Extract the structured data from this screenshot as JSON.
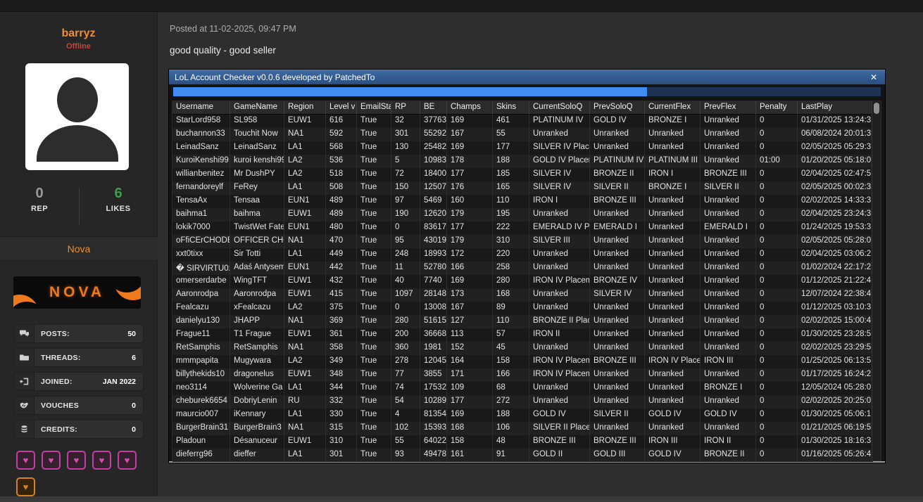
{
  "sidebar": {
    "username": "barryz",
    "status": "Offline",
    "rep": {
      "value": "0",
      "label": "REP"
    },
    "likes": {
      "value": "6",
      "label": "LIKES"
    },
    "group": "Nova",
    "banner_text": "NOVA",
    "heart_glyph": "♥",
    "stats": [
      {
        "icon": "comments-icon",
        "label": "POSTS:",
        "value": "50"
      },
      {
        "icon": "folder-icon",
        "label": "THREADS:",
        "value": "6"
      },
      {
        "icon": "sign-in-icon",
        "label": "JOINED:",
        "value": "JAN 2022"
      },
      {
        "icon": "handshake-icon",
        "label": "VOUCHES",
        "value": "0"
      },
      {
        "icon": "coins-icon",
        "label": "CREDITS:",
        "value": "0"
      }
    ],
    "award_hearts": {
      "pink_count": 5,
      "orange_count": 1
    },
    "colors": {
      "accent_orange": "#ee8f35",
      "offline_red": "#c94138",
      "likes_green": "#3f9e4d",
      "heart_pink": "#c43ea5",
      "heart_orange": "#d8821f"
    }
  },
  "post": {
    "posted_at": "Posted at 11-02-2025, 09:47 PM",
    "body_text": "good quality - good seller"
  },
  "checker_window": {
    "title": "LoL Account Checker v0.0.6 developed by PatchedTo",
    "close_label": "✕",
    "progress_percent": 67,
    "colors": {
      "titlebar_blue": "#31598c",
      "progress_fill": "#3f8df2",
      "progress_track": "#1e3252"
    },
    "table": {
      "columns": [
        "Username",
        "GameName",
        "Region",
        "Level v",
        "EmailSta",
        "RP",
        "BE",
        "Champs",
        "Skins",
        "CurrentSoloQ",
        "PrevSoloQ",
        "CurrentFlex",
        "PrevFlex",
        "Penalty",
        "LastPlay"
      ],
      "rows": [
        [
          "StarLord958",
          "SL958",
          "EUW1",
          "616",
          "True",
          "32",
          "37763",
          "169",
          "461",
          "PLATINUM IV",
          "GOLD IV",
          "BRONZE I",
          "Unranked",
          "0",
          "01/31/2025 13:24:3"
        ],
        [
          "buchannon33",
          "Touchit Now",
          "NA1",
          "592",
          "True",
          "301",
          "55292",
          "167",
          "55",
          "Unranked",
          "Unranked",
          "Unranked",
          "Unranked",
          "0",
          "06/08/2024 20:01:3"
        ],
        [
          "LeinadSanz",
          "LeinadSanz",
          "LA1",
          "568",
          "True",
          "130",
          "25482",
          "169",
          "177",
          "SILVER IV Place",
          "Unranked",
          "Unranked",
          "Unranked",
          "0",
          "02/05/2025 05:29:3"
        ],
        [
          "KuroiKenshi99",
          "kuroi kenshi99",
          "LA2",
          "536",
          "True",
          "5",
          "10983",
          "178",
          "188",
          "GOLD IV Placem",
          "PLATINUM IV",
          "PLATINUM III",
          "Unranked",
          "01:00",
          "01/20/2025 05:18:0"
        ],
        [
          "willianbenitez",
          "Mr DushPY",
          "LA2",
          "518",
          "True",
          "72",
          "18400",
          "177",
          "185",
          "SILVER IV",
          "BRONZE II",
          "IRON I",
          "BRONZE III",
          "0",
          "02/04/2025 02:47:5"
        ],
        [
          "fernandoreylf",
          "FeRey",
          "LA1",
          "508",
          "True",
          "150",
          "12507",
          "176",
          "165",
          "SILVER IV",
          "SILVER II",
          "BRONZE I",
          "SILVER II",
          "0",
          "02/05/2025 00:02:3"
        ],
        [
          "TensaAx",
          "Tensaa",
          "EUN1",
          "489",
          "True",
          "97",
          "5469",
          "160",
          "110",
          "IRON I",
          "BRONZE III",
          "Unranked",
          "Unranked",
          "0",
          "02/02/2025 14:33:3"
        ],
        [
          "baihma1",
          "baihma",
          "EUW1",
          "489",
          "True",
          "190",
          "12620",
          "179",
          "195",
          "Unranked",
          "Unranked",
          "Unranked",
          "Unranked",
          "0",
          "02/04/2025 23:24:3"
        ],
        [
          "lokik7000",
          "TwistWet Fate",
          "EUN1",
          "480",
          "True",
          "0",
          "83617",
          "177",
          "222",
          "EMERALD IV Pla",
          "EMERALD I",
          "Unranked",
          "EMERALD I",
          "0",
          "01/24/2025 19:53:3"
        ],
        [
          "oFfiCErCHODE",
          "OFFICER CHO",
          "NA1",
          "470",
          "True",
          "95",
          "43019",
          "179",
          "310",
          "SILVER III",
          "Unranked",
          "Unranked",
          "Unranked",
          "0",
          "02/05/2025 05:28:0"
        ],
        [
          "xxt0tixx",
          "Sir Totti",
          "LA1",
          "449",
          "True",
          "248",
          "18993",
          "172",
          "220",
          "Unranked",
          "Unranked",
          "Unranked",
          "Unranked",
          "0",
          "02/04/2025 03:06:2"
        ],
        [
          "� SIRVIRTU0z",
          "Adaś Antysem",
          "EUN1",
          "442",
          "True",
          "11",
          "52780",
          "166",
          "258",
          "Unranked",
          "Unranked",
          "Unranked",
          "Unranked",
          "0",
          "01/02/2024 22:17:2"
        ],
        [
          "omerserdarbe",
          "WingTFT",
          "EUW1",
          "432",
          "True",
          "40",
          "7740",
          "169",
          "280",
          "IRON IV Placem",
          "BRONZE IV",
          "Unranked",
          "Unranked",
          "0",
          "01/12/2025 21:22:4"
        ],
        [
          "Aaronrodpa",
          "Aaronrodpa",
          "EUW1",
          "415",
          "True",
          "1097",
          "28148",
          "173",
          "168",
          "Unranked",
          "SILVER IV",
          "Unranked",
          "Unranked",
          "0",
          "12/07/2024 22:38:4"
        ],
        [
          "Fealcazu",
          "xFealcazu",
          "LA2",
          "375",
          "True",
          "0",
          "13008",
          "167",
          "89",
          "Unranked",
          "Unranked",
          "Unranked",
          "Unranked",
          "0",
          "01/12/2025 03:10:3"
        ],
        [
          "danielyu130",
          "JHAPP",
          "NA1",
          "369",
          "True",
          "280",
          "51615",
          "127",
          "110",
          "BRONZE II Place",
          "Unranked",
          "Unranked",
          "Unranked",
          "0",
          "02/02/2025 15:00:4"
        ],
        [
          "Frague11",
          "T1 Frague",
          "EUW1",
          "361",
          "True",
          "200",
          "36668",
          "113",
          "57",
          "IRON II",
          "Unranked",
          "Unranked",
          "Unranked",
          "0",
          "01/30/2025 23:28:5"
        ],
        [
          "RetSamphis",
          "RetSamphis",
          "NA1",
          "358",
          "True",
          "360",
          "1981",
          "152",
          "45",
          "Unranked",
          "Unranked",
          "Unranked",
          "Unranked",
          "0",
          "02/02/2025 23:29:5"
        ],
        [
          "mmmpapita",
          "Mugywara",
          "LA2",
          "349",
          "True",
          "278",
          "12045",
          "164",
          "158",
          "IRON IV Placem",
          "BRONZE III",
          "IRON IV Place",
          "IRON III",
          "0",
          "01/25/2025 06:13:5"
        ],
        [
          "billythekids10",
          "dragonelus",
          "EUW1",
          "348",
          "True",
          "77",
          "3855",
          "171",
          "166",
          "IRON IV Placem",
          "Unranked",
          "Unranked",
          "Unranked",
          "0",
          "01/17/2025 16:24:2"
        ],
        [
          "neo3114",
          "Wolverine Ga",
          "LA1",
          "344",
          "True",
          "74",
          "17532",
          "109",
          "68",
          "Unranked",
          "Unranked",
          "Unranked",
          "BRONZE I",
          "0",
          "12/05/2024 05:28:0"
        ],
        [
          "cheburek6654",
          "DobriyLenin",
          "RU",
          "332",
          "True",
          "54",
          "10289",
          "177",
          "272",
          "Unranked",
          "Unranked",
          "Unranked",
          "Unranked",
          "0",
          "02/02/2025 20:25:0"
        ],
        [
          "maurcio007",
          "iKennary",
          "LA1",
          "330",
          "True",
          "4",
          "81354",
          "169",
          "188",
          "GOLD IV",
          "SILVER II",
          "GOLD IV",
          "GOLD IV",
          "0",
          "01/30/2025 05:06:1"
        ],
        [
          "BurgerBrain31",
          "BurgerBrain3",
          "NA1",
          "315",
          "True",
          "102",
          "15393",
          "168",
          "106",
          "SILVER II Placem",
          "Unranked",
          "Unranked",
          "Unranked",
          "0",
          "01/21/2025 06:19:5"
        ],
        [
          "Pladoun",
          "Désanuceur",
          "EUW1",
          "310",
          "True",
          "55",
          "64022",
          "158",
          "48",
          "BRONZE III",
          "BRONZE III",
          "IRON III",
          "IRON II",
          "0",
          "01/30/2025 18:16:3"
        ],
        [
          "dieferrg96",
          "dieffer",
          "LA1",
          "301",
          "True",
          "93",
          "49478",
          "161",
          "91",
          "GOLD II",
          "GOLD III",
          "GOLD IV",
          "BRONZE II",
          "0",
          "01/16/2025 05:26:4"
        ]
      ]
    }
  }
}
